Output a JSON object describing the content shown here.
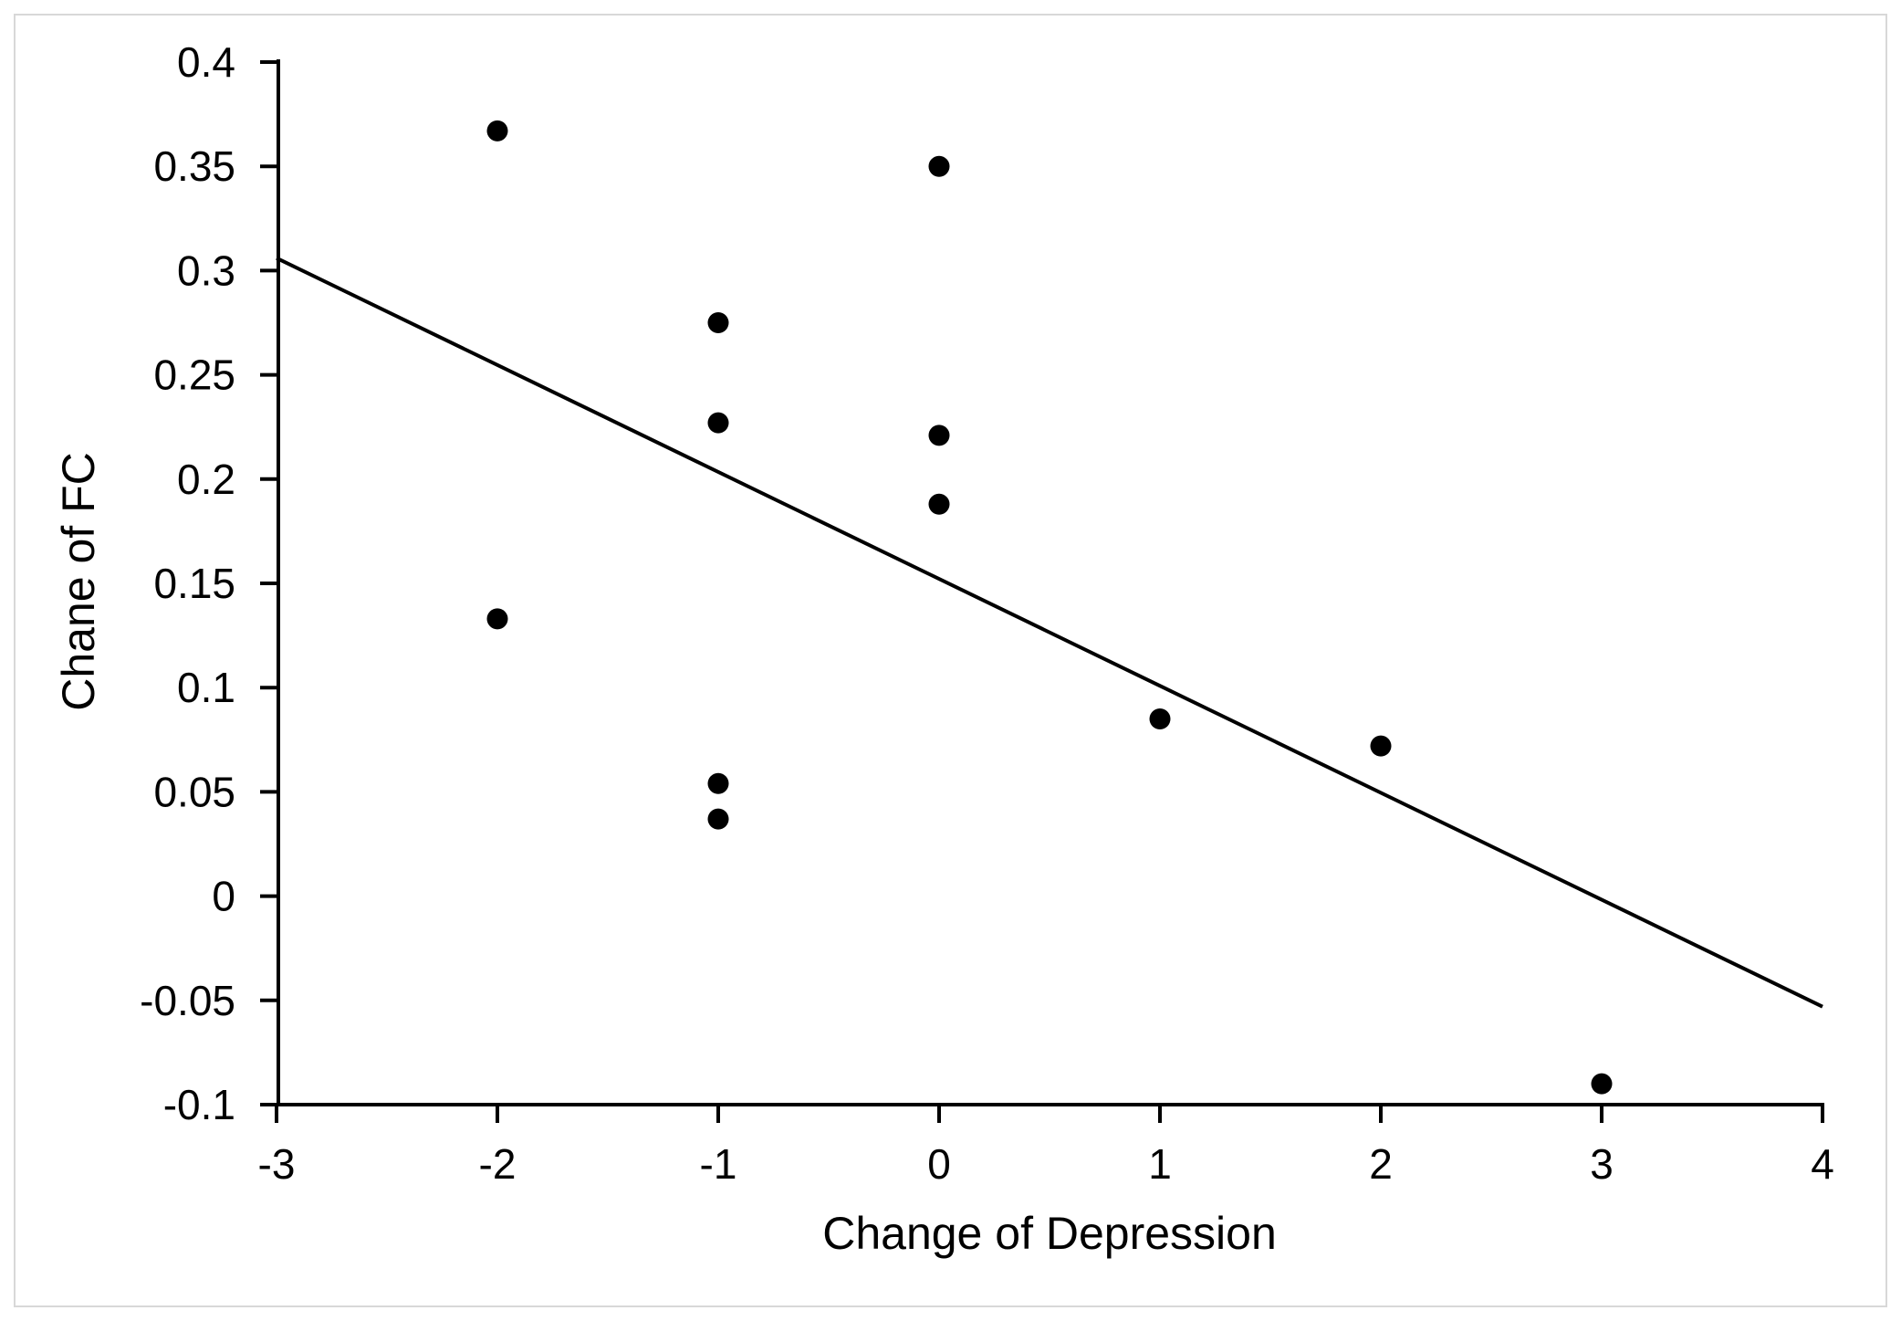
{
  "figure": {
    "background": "#ffffff",
    "frame_border_color": "#d8d8d8",
    "axis_color": "#000000",
    "tick_label_color": "#000000",
    "point_color": "#000000",
    "trend_line_color": "#000000"
  },
  "chart_data": {
    "type": "scatter",
    "title": "",
    "xlabel": "Change of Depression",
    "ylabel": "Chane of FC",
    "xlim": [
      -3,
      4
    ],
    "ylim": [
      -0.1,
      0.4
    ],
    "grid": false,
    "legend": "none",
    "x_ticks": [
      {
        "v": -3,
        "label": "-3"
      },
      {
        "v": -2,
        "label": "-2"
      },
      {
        "v": -1,
        "label": "-1"
      },
      {
        "v": 0,
        "label": "0"
      },
      {
        "v": 1,
        "label": "1"
      },
      {
        "v": 2,
        "label": "2"
      },
      {
        "v": 3,
        "label": "3"
      },
      {
        "v": 4,
        "label": "4"
      }
    ],
    "y_ticks": [
      {
        "v": 0.4,
        "label": "0.4"
      },
      {
        "v": 0.35,
        "label": "0.35"
      },
      {
        "v": 0.3,
        "label": "0.3"
      },
      {
        "v": 0.25,
        "label": "0.25"
      },
      {
        "v": 0.2,
        "label": "0.2"
      },
      {
        "v": 0.15,
        "label": "0.15"
      },
      {
        "v": 0.1,
        "label": "0.1"
      },
      {
        "v": 0.05,
        "label": "0.05"
      },
      {
        "v": 0,
        "label": "0"
      },
      {
        "v": -0.05,
        "label": "-0.05"
      },
      {
        "v": -0.1,
        "label": "-0.1"
      }
    ],
    "points": [
      {
        "x": -2,
        "y": 0.367
      },
      {
        "x": -2,
        "y": 0.133
      },
      {
        "x": -1,
        "y": 0.275
      },
      {
        "x": -1,
        "y": 0.227
      },
      {
        "x": -1,
        "y": 0.054
      },
      {
        "x": -1,
        "y": 0.037
      },
      {
        "x": 0,
        "y": 0.35
      },
      {
        "x": 0,
        "y": 0.221
      },
      {
        "x": 0,
        "y": 0.188
      },
      {
        "x": 1,
        "y": 0.085
      },
      {
        "x": 2,
        "y": 0.072
      },
      {
        "x": 3,
        "y": -0.09
      }
    ],
    "trend_line": {
      "x1": -3,
      "y1": 0.306,
      "x2": 4,
      "y2": -0.053
    }
  }
}
